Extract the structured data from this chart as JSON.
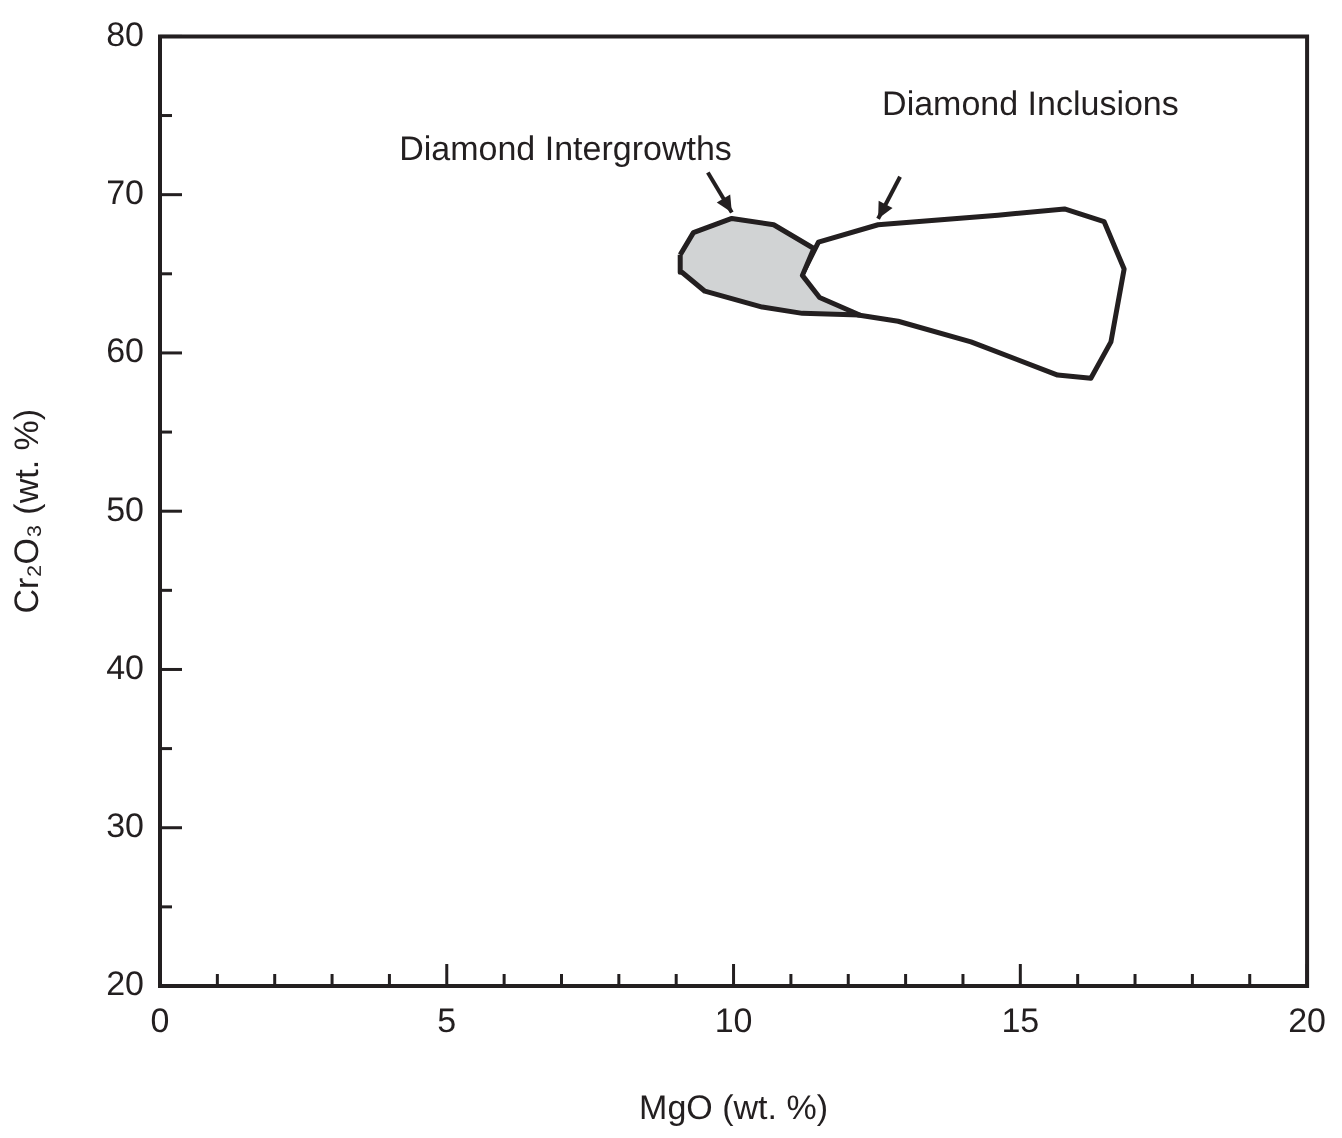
{
  "chart_data": {
    "type": "area",
    "xlabel": "MgO (wt. %)",
    "ylabel": "Cr₂O₃ (wt. %)",
    "xlim": [
      0,
      20
    ],
    "ylim": [
      20,
      80
    ],
    "xticks": [
      0,
      {
        "value": 1,
        "label": null
      },
      {
        "value": 2,
        "label": null
      },
      {
        "value": 3,
        "label": null
      },
      {
        "value": 4,
        "label": null
      },
      5,
      {
        "value": 6,
        "label": null
      },
      {
        "value": 7,
        "label": null
      },
      {
        "value": 8,
        "label": null
      },
      {
        "value": 9,
        "label": null
      },
      10,
      {
        "value": 11,
        "label": null
      },
      {
        "value": 12,
        "label": null
      },
      {
        "value": 13,
        "label": null
      },
      {
        "value": 14,
        "label": null
      },
      15,
      {
        "value": 16,
        "label": null
      },
      {
        "value": 17,
        "label": null
      },
      {
        "value": 18,
        "label": null
      },
      {
        "value": 19,
        "label": null
      },
      20
    ],
    "yticks": [
      20,
      {
        "value": 25,
        "label": null
      },
      30,
      {
        "value": 35,
        "label": null
      },
      40,
      {
        "value": 45,
        "label": null
      },
      50,
      {
        "value": 55,
        "label": null
      },
      60,
      {
        "value": 65,
        "label": null
      },
      70,
      {
        "value": 75,
        "label": null
      },
      80
    ],
    "grid": false,
    "legend": false,
    "series": [
      {
        "name": "Diamond Intergrowths",
        "color": "#d1d3d4",
        "x": [
          9.07,
          9.3,
          9.97,
          10.7,
          11.4,
          11.2,
          11.5,
          12.2,
          11.2,
          10.5,
          9.5,
          9.1
        ],
        "values": [
          66.2,
          67.6,
          68.5,
          68.1,
          66.6,
          64.9,
          63.5,
          62.4,
          62.5,
          62.9,
          63.9,
          65.1
        ]
      },
      {
        "name": "Diamond Inclusions",
        "color": "#ffffff",
        "x": [
          11.19,
          11.48,
          12.52,
          14.61,
          15.77,
          16.46,
          16.81,
          16.58,
          16.23,
          15.65,
          14.14,
          12.87,
          12.17,
          11.48,
          11.19
        ],
        "values": [
          64.9,
          67.0,
          68.1,
          68.7,
          69.1,
          68.3,
          65.3,
          60.7,
          58.4,
          58.6,
          60.7,
          62.0,
          62.4,
          63.2,
          64.3
        ]
      }
    ]
  }
}
